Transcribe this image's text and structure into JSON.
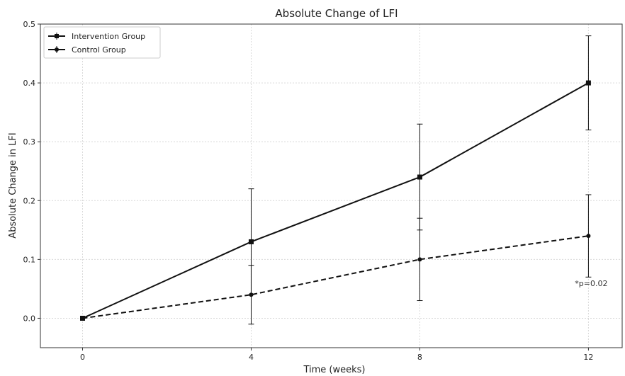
{
  "chart_data": {
    "type": "line",
    "title": "Absolute Change of LFI",
    "xlabel": "Time (weeks)",
    "ylabel": "Absolute Change in LFI",
    "x": [
      0,
      4,
      8,
      12
    ],
    "xticks": [
      "0",
      "4",
      "8",
      "12"
    ],
    "yticks": [
      "0.0",
      "0.1",
      "0.2",
      "0.3",
      "0.4",
      "0.5"
    ],
    "xlim": [
      -1,
      12.8
    ],
    "ylim": [
      -0.05,
      0.5
    ],
    "grid": true,
    "legend_position": "top-left",
    "series": [
      {
        "name": "Intervention Group",
        "values": [
          0.0,
          0.13,
          0.24,
          0.4
        ],
        "error": [
          0.0,
          0.09,
          0.09,
          0.08
        ],
        "line_style": "solid",
        "marker": "square",
        "color": "#111111"
      },
      {
        "name": "Control Group",
        "values": [
          0.0,
          0.04,
          0.1,
          0.14
        ],
        "error": [
          0.0,
          0.05,
          0.07,
          0.07
        ],
        "line_style": "dashed",
        "marker": "circle",
        "color": "#111111"
      }
    ],
    "annotations": [
      {
        "text": "*p=0.02",
        "x": 12,
        "y": 0.055
      }
    ]
  }
}
